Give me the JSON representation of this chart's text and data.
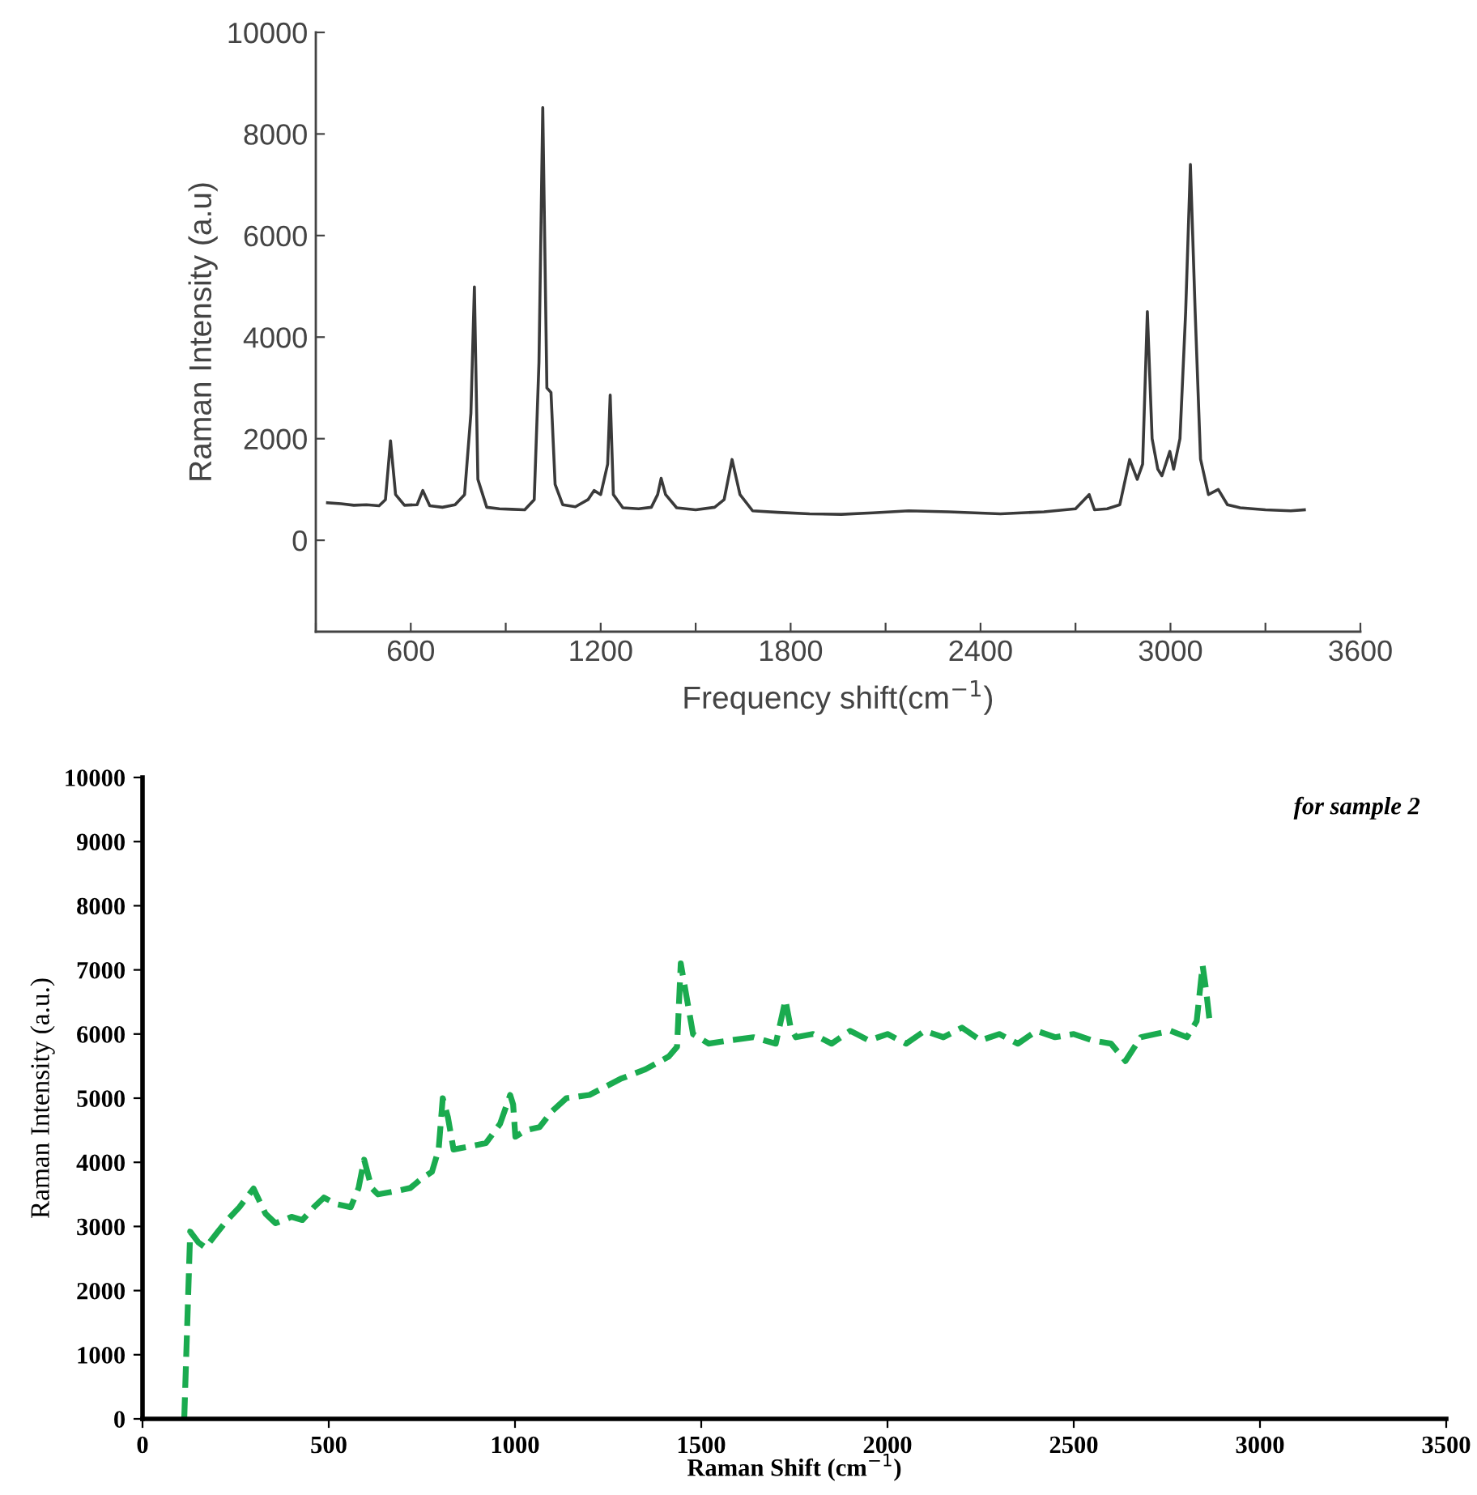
{
  "chart_data": [
    {
      "type": "line",
      "xlabel": "Frequency shift(cm$^{−1}$)",
      "ylabel": "Raman Intensity (a.u)",
      "xlim": [
        300,
        3600
      ],
      "ylim": [
        -1800,
        10000
      ],
      "xticks": [
        {
          "value": 300,
          "label": null
        },
        600,
        {
          "value": 900,
          "label": null
        },
        1200,
        {
          "value": 1500,
          "label": null
        },
        1800,
        {
          "value": 2100,
          "label": null
        },
        2400,
        {
          "value": 2700,
          "label": null
        },
        3000,
        {
          "value": 3300,
          "label": null
        },
        3600
      ],
      "yticks": [
        0,
        2000,
        4000,
        6000,
        8000,
        10000
      ],
      "line_style": "solid",
      "marker": "none",
      "series": [
        {
          "color": "#3a3a3a",
          "x": [
            337,
            380,
            420,
            460,
            500,
            520,
            536,
            552,
            580,
            620,
            638,
            660,
            700,
            740,
            770,
            790,
            801,
            812,
            840,
            880,
            920,
            960,
            990,
            1005,
            1017,
            1030,
            1043,
            1056,
            1080,
            1120,
            1160,
            1179,
            1200,
            1222,
            1230,
            1240,
            1270,
            1320,
            1360,
            1380,
            1391,
            1405,
            1440,
            1500,
            1560,
            1590,
            1615,
            1640,
            1680,
            1760,
            1860,
            1960,
            2060,
            2173,
            2300,
            2463,
            2600,
            2700,
            2743,
            2760,
            2800,
            2840,
            2871,
            2895,
            2912,
            2927,
            2942,
            2960,
            2973,
            2985,
            2998,
            3010,
            3030,
            3048,
            3063,
            3078,
            3095,
            3120,
            3151,
            3180,
            3220,
            3300,
            3380,
            3423
          ],
          "values": [
            740,
            720,
            690,
            700,
            680,
            800,
            1960,
            900,
            690,
            700,
            980,
            680,
            650,
            700,
            900,
            2500,
            4990,
            1200,
            650,
            620,
            610,
            600,
            800,
            3500,
            8520,
            3000,
            2910,
            1100,
            700,
            660,
            800,
            980,
            900,
            1500,
            2860,
            900,
            640,
            620,
            650,
            900,
            1220,
            900,
            640,
            600,
            650,
            800,
            1590,
            900,
            580,
            550,
            520,
            510,
            540,
            580,
            560,
            520,
            560,
            620,
            900,
            600,
            620,
            700,
            1590,
            1200,
            1500,
            4500,
            2000,
            1400,
            1270,
            1500,
            1750,
            1400,
            2000,
            4500,
            7400,
            4500,
            1600,
            900,
            1000,
            700,
            640,
            600,
            580,
            600
          ]
        }
      ]
    },
    {
      "type": "line",
      "xlabel": "Raman Shift (cm$^{−1}$)",
      "ylabel": "Raman Intensity (a.u.)",
      "xlim": [
        0,
        3500
      ],
      "ylim": [
        0,
        10000
      ],
      "xticks": [
        0,
        500,
        1000,
        1500,
        2000,
        2500,
        3000,
        3500
      ],
      "yticks": [
        0,
        1000,
        2000,
        3000,
        4000,
        5000,
        6000,
        7000,
        8000,
        9000,
        10000
      ],
      "line_style": "dashed",
      "marker": "none",
      "annotations": [
        "for sample 2"
      ],
      "series": [
        {
          "color": "#1aab4f",
          "x": [
            112,
            128,
            150,
            169,
            200,
            226,
            260,
            298,
            330,
            357,
            400,
            429,
            460,
            487,
            520,
            559,
            580,
            595,
            615,
            632,
            680,
            719,
            750,
            777,
            795,
            806,
            820,
            835,
            880,
            922,
            960,
            987,
            995,
            1001,
            1030,
            1066,
            1100,
            1138,
            1200,
            1283,
            1350,
            1413,
            1435,
            1445,
            1460,
            1478,
            1520,
            1574,
            1640,
            1700,
            1726,
            1740,
            1754,
            1800,
            1850,
            1900,
            1950,
            2000,
            2050,
            2100,
            2150,
            2200,
            2250,
            2300,
            2350,
            2400,
            2450,
            2500,
            2550,
            2600,
            2639,
            2680,
            2720,
            2760,
            2804,
            2830,
            2846,
            2855,
            2864
          ],
          "values": [
            0,
            2920,
            2750,
            2670,
            2900,
            3090,
            3300,
            3590,
            3200,
            3050,
            3150,
            3100,
            3300,
            3450,
            3350,
            3300,
            3600,
            4040,
            3600,
            3500,
            3550,
            3600,
            3750,
            3850,
            4200,
            5000,
            4700,
            4200,
            4250,
            4300,
            4600,
            5050,
            4900,
            4400,
            4500,
            4550,
            4800,
            5000,
            5050,
            5300,
            5450,
            5650,
            5800,
            7100,
            6600,
            6000,
            5850,
            5900,
            5950,
            5850,
            6530,
            6100,
            5950,
            6000,
            5850,
            6050,
            5900,
            6000,
            5850,
            6050,
            5950,
            6100,
            5900,
            6000,
            5850,
            6050,
            5950,
            6000,
            5900,
            5850,
            5580,
            5950,
            6000,
            6050,
            5950,
            6200,
            7070,
            6700,
            6240
          ]
        }
      ]
    }
  ]
}
